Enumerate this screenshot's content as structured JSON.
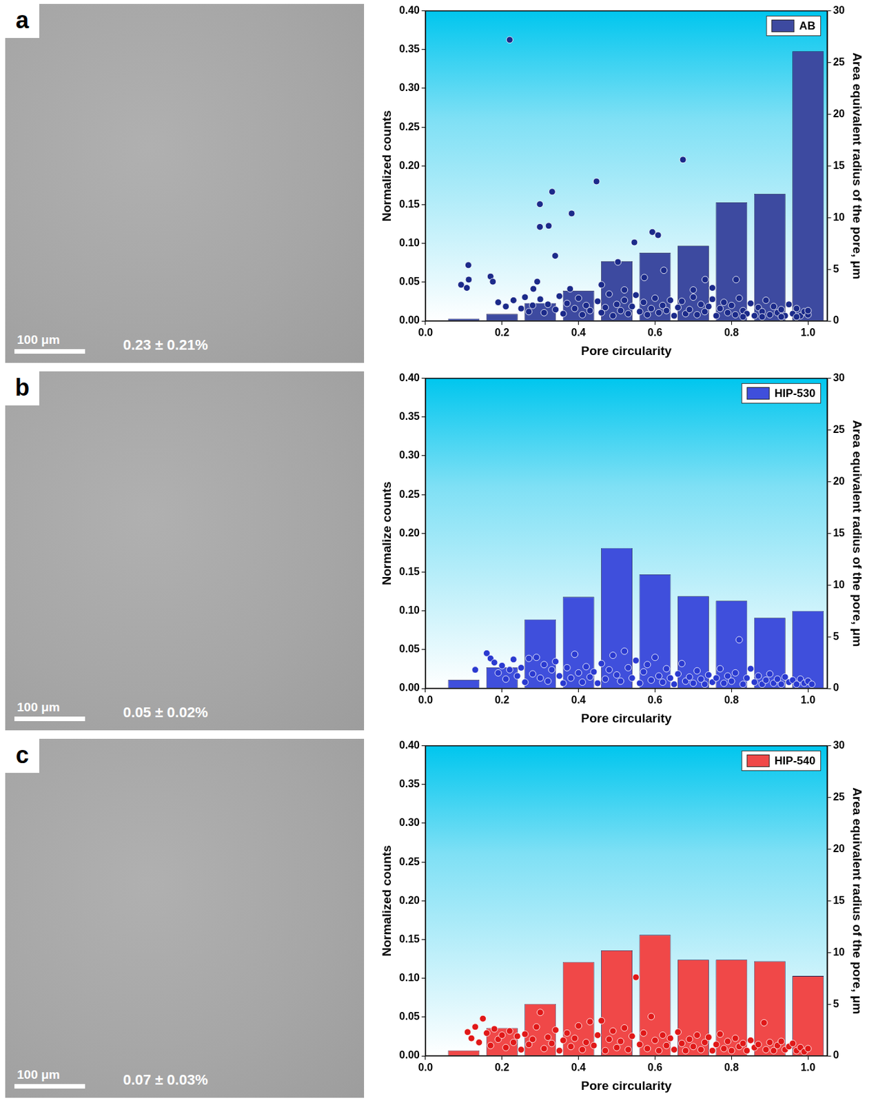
{
  "micrographs": [
    {
      "panel_letter": "a",
      "scale_bar": "100 μm",
      "porosity": "0.23 ± 0.21%"
    },
    {
      "panel_letter": "b",
      "scale_bar": "100 μm",
      "porosity": "0.05 ± 0.02%"
    },
    {
      "panel_letter": "c",
      "scale_bar": "100 μm",
      "porosity": "0.07 ± 0.03%"
    }
  ],
  "chart_data": [
    {
      "type": "bar",
      "x_label": "Pore circularity",
      "y_label": "Normalized counts",
      "y2_label": "Area equivalent radius of the pore, μm",
      "bins": [
        0.05,
        0.15,
        0.25,
        0.35,
        0.45,
        0.55,
        0.65,
        0.75,
        0.85,
        0.95,
        1.05
      ],
      "xlim": [
        0,
        1.05
      ],
      "xticks": [
        {
          "value": 0,
          "label": "0.0"
        },
        {
          "value": 0.2,
          "label": "0.2"
        },
        {
          "value": 0.4,
          "label": "0.4"
        },
        {
          "value": 0.6,
          "label": "0.6"
        },
        {
          "value": 0.8,
          "label": "0.8"
        },
        {
          "value": 1,
          "label": "1.0"
        }
      ],
      "ylim": [
        0,
        0.4
      ],
      "yticks": [
        {
          "value": 0,
          "label": "0.00"
        },
        {
          "value": 0.05,
          "label": "0.05"
        },
        {
          "value": 0.1,
          "label": "0.10"
        },
        {
          "value": 0.15,
          "label": "0.15"
        },
        {
          "value": 0.2,
          "label": "0.20"
        },
        {
          "value": 0.25,
          "label": "0.25"
        },
        {
          "value": 0.3,
          "label": "0.30"
        },
        {
          "value": 0.35,
          "label": "0.35"
        },
        {
          "value": 0.4,
          "label": "0.40"
        }
      ],
      "y2lim": [
        0,
        30
      ],
      "y2ticks": [
        0,
        5,
        10,
        15,
        20,
        25,
        30
      ],
      "grid": false,
      "legend": "upper right",
      "series": [
        {
          "name": "AB",
          "type": "bar",
          "color": "#3d4aa0",
          "values": [
            0.003,
            0.009,
            0.023,
            0.039,
            0.077,
            0.088,
            0.097,
            0.153,
            0.164,
            0.348
          ]
        },
        {
          "type": "scatter",
          "axis": "y2",
          "color": "#1b2a8a",
          "marker": "circle",
          "x": [
            0.22,
            0.673,
            0.447,
            0.331,
            0.299,
            0.382,
            0.299,
            0.322,
            0.339,
            0.546,
            0.593,
            0.608,
            0.112,
            0.113,
            0.093,
            0.108,
            0.17,
            0.176,
            0.292,
            0.282,
            0.378,
            0.503,
            0.572,
            0.623,
            0.731,
            0.812,
            0.7,
            0.75,
            0.52,
            0.46,
            0.19,
            0.21,
            0.23,
            0.25,
            0.26,
            0.27,
            0.28,
            0.3,
            0.31,
            0.32,
            0.34,
            0.35,
            0.36,
            0.37,
            0.39,
            0.4,
            0.41,
            0.42,
            0.43,
            0.45,
            0.46,
            0.47,
            0.48,
            0.49,
            0.5,
            0.51,
            0.52,
            0.53,
            0.54,
            0.55,
            0.56,
            0.57,
            0.58,
            0.59,
            0.6,
            0.61,
            0.62,
            0.63,
            0.64,
            0.65,
            0.66,
            0.67,
            0.68,
            0.69,
            0.7,
            0.71,
            0.72,
            0.73,
            0.74,
            0.75,
            0.76,
            0.77,
            0.78,
            0.79,
            0.8,
            0.81,
            0.82,
            0.83,
            0.84,
            0.85,
            0.86,
            0.87,
            0.88,
            0.89,
            0.9,
            0.91,
            0.92,
            0.93,
            0.94,
            0.95,
            0.96,
            0.97,
            0.98,
            0.99,
            1.0,
            1.0,
            0.97,
            0.93,
            0.88,
            0.83
          ],
          "values": [
            27.2,
            15.6,
            13.5,
            12.5,
            11.3,
            10.4,
            9.1,
            9.2,
            6.3,
            7.6,
            8.6,
            8.3,
            5.4,
            4.0,
            3.5,
            3.2,
            4.3,
            3.8,
            3.8,
            3.1,
            3.1,
            5.7,
            4.2,
            4.9,
            4.0,
            4.0,
            3.0,
            3.2,
            3.0,
            3.5,
            1.8,
            1.4,
            2.0,
            1.2,
            2.3,
            0.9,
            1.5,
            2.1,
            0.8,
            1.6,
            1.1,
            2.4,
            0.7,
            1.7,
            1.2,
            2.2,
            0.6,
            1.5,
            1.0,
            1.9,
            0.8,
            1.3,
            2.6,
            0.5,
            1.6,
            1.0,
            2.0,
            0.7,
            1.4,
            2.5,
            0.9,
            1.8,
            0.6,
            1.2,
            2.2,
            0.8,
            1.5,
            1.0,
            2.0,
            0.5,
            1.3,
            1.9,
            0.7,
            1.1,
            2.3,
            0.6,
            1.6,
            0.9,
            1.4,
            2.1,
            0.5,
            1.2,
            1.8,
            0.8,
            1.5,
            0.6,
            2.2,
            1.0,
            0.7,
            1.7,
            0.5,
            1.3,
            0.9,
            2.0,
            0.6,
            1.4,
            0.8,
            1.1,
            0.5,
            1.6,
            0.7,
            1.2,
            0.5,
            0.9,
            0.6,
            1.0,
            0.4,
            0.4,
            0.4,
            0.4
          ]
        }
      ]
    },
    {
      "type": "bar",
      "x_label": "Pore circularity",
      "y_label": "Normalize counts",
      "y2_label": "Area equivalent radius of the pore, μm",
      "bins": [
        0.05,
        0.15,
        0.25,
        0.35,
        0.45,
        0.55,
        0.65,
        0.75,
        0.85,
        0.95,
        1.05
      ],
      "xlim": [
        0,
        1.05
      ],
      "xticks": [
        {
          "value": 0,
          "label": "0.0"
        },
        {
          "value": 0.2,
          "label": "0.2"
        },
        {
          "value": 0.4,
          "label": "0.4"
        },
        {
          "value": 0.6,
          "label": "0.6"
        },
        {
          "value": 0.8,
          "label": "0.8"
        },
        {
          "value": 1,
          "label": "1.0"
        }
      ],
      "ylim": [
        0,
        0.4
      ],
      "yticks": [
        {
          "value": 0,
          "label": "0.00"
        },
        {
          "value": 0.05,
          "label": "0.05"
        },
        {
          "value": 0.1,
          "label": "0.10"
        },
        {
          "value": 0.15,
          "label": "0.15"
        },
        {
          "value": 0.2,
          "label": "0.20"
        },
        {
          "value": 0.25,
          "label": "0.25"
        },
        {
          "value": 0.3,
          "label": "0.30"
        },
        {
          "value": 0.35,
          "label": "0.35"
        },
        {
          "value": 0.4,
          "label": "0.40"
        }
      ],
      "y2lim": [
        0,
        30
      ],
      "y2ticks": [
        0,
        5,
        10,
        15,
        20,
        25,
        30
      ],
      "grid": false,
      "legend": "upper right",
      "series": [
        {
          "name": "HIP-530",
          "type": "bar",
          "color": "#3f4fdc",
          "values": [
            0.011,
            0.027,
            0.089,
            0.118,
            0.181,
            0.147,
            0.119,
            0.113,
            0.091,
            0.1
          ]
        },
        {
          "type": "scatter",
          "axis": "y2",
          "color": "#2a3ad0",
          "marker": "circle",
          "x": [
            0.13,
            0.16,
            0.17,
            0.18,
            0.19,
            0.2,
            0.21,
            0.22,
            0.23,
            0.24,
            0.25,
            0.26,
            0.27,
            0.28,
            0.29,
            0.3,
            0.31,
            0.32,
            0.33,
            0.34,
            0.35,
            0.36,
            0.37,
            0.38,
            0.39,
            0.4,
            0.41,
            0.42,
            0.43,
            0.44,
            0.45,
            0.46,
            0.47,
            0.48,
            0.49,
            0.5,
            0.51,
            0.52,
            0.53,
            0.54,
            0.55,
            0.56,
            0.57,
            0.58,
            0.59,
            0.6,
            0.61,
            0.62,
            0.63,
            0.64,
            0.65,
            0.66,
            0.67,
            0.68,
            0.69,
            0.7,
            0.71,
            0.72,
            0.73,
            0.74,
            0.75,
            0.76,
            0.77,
            0.78,
            0.79,
            0.8,
            0.81,
            0.82,
            0.83,
            0.84,
            0.85,
            0.86,
            0.87,
            0.88,
            0.89,
            0.9,
            0.91,
            0.92,
            0.93,
            0.94,
            0.95,
            0.96,
            0.97,
            0.98,
            0.99,
            1.0,
            1.01
          ],
          "values": [
            1.8,
            3.4,
            2.9,
            2.5,
            1.5,
            2.2,
            0.9,
            1.8,
            2.8,
            1.2,
            2.0,
            0.6,
            2.9,
            1.4,
            3.0,
            1.0,
            2.3,
            0.7,
            1.8,
            2.6,
            1.2,
            0.5,
            2.0,
            1.0,
            3.3,
            1.5,
            0.6,
            2.1,
            1.1,
            1.6,
            0.5,
            2.4,
            0.9,
            1.8,
            3.2,
            1.3,
            0.7,
            3.6,
            2.0,
            1.0,
            2.7,
            0.5,
            1.6,
            2.3,
            0.8,
            3.0,
            1.2,
            0.6,
            1.9,
            1.0,
            0.4,
            1.4,
            2.4,
            0.7,
            1.1,
            0.5,
            1.7,
            0.9,
            0.4,
            1.3,
            0.6,
            1.0,
            1.9,
            0.5,
            1.2,
            0.7,
            1.5,
            4.7,
            0.4,
            1.0,
            1.9,
            0.6,
            1.2,
            0.4,
            0.8,
            1.4,
            0.5,
            0.9,
            0.4,
            1.1,
            0.6,
            0.8,
            0.4,
            0.9,
            0.5,
            0.7,
            0.4
          ]
        }
      ]
    },
    {
      "type": "bar",
      "x_label": "Pore circularity",
      "y_label": "Normalized counts",
      "y2_label": "Area equivalent radius of the pore, μm",
      "bins": [
        0.05,
        0.15,
        0.25,
        0.35,
        0.45,
        0.55,
        0.65,
        0.75,
        0.85,
        0.95,
        1.05
      ],
      "xlim": [
        0,
        1.05
      ],
      "xticks": [
        {
          "value": 0,
          "label": "0.0"
        },
        {
          "value": 0.2,
          "label": "0.2"
        },
        {
          "value": 0.4,
          "label": "0.4"
        },
        {
          "value": 0.6,
          "label": "0.6"
        },
        {
          "value": 0.8,
          "label": "0.8"
        },
        {
          "value": 1,
          "label": "1.0"
        }
      ],
      "ylim": [
        0,
        0.4
      ],
      "yticks": [
        {
          "value": 0,
          "label": "0.00"
        },
        {
          "value": 0.05,
          "label": "0.05"
        },
        {
          "value": 0.1,
          "label": "0.10"
        },
        {
          "value": 0.15,
          "label": "0.15"
        },
        {
          "value": 0.2,
          "label": "0.20"
        },
        {
          "value": 0.25,
          "label": "0.25"
        },
        {
          "value": 0.3,
          "label": "0.30"
        },
        {
          "value": 0.35,
          "label": "0.35"
        },
        {
          "value": 0.4,
          "label": "0.40"
        }
      ],
      "y2lim": [
        0,
        30
      ],
      "y2ticks": [
        0,
        5,
        10,
        15,
        20,
        25,
        30
      ],
      "grid": false,
      "legend": "upper right",
      "series": [
        {
          "name": "HIP-540",
          "type": "bar",
          "color": "#f04848",
          "values": [
            0.007,
            0.036,
            0.067,
            0.121,
            0.136,
            0.156,
            0.124,
            0.124,
            0.122,
            0.103
          ]
        },
        {
          "type": "scatter",
          "axis": "y2",
          "color": "#e01818",
          "marker": "circle",
          "x": [
            0.11,
            0.12,
            0.13,
            0.14,
            0.15,
            0.16,
            0.17,
            0.18,
            0.19,
            0.2,
            0.21,
            0.22,
            0.23,
            0.24,
            0.25,
            0.26,
            0.27,
            0.28,
            0.29,
            0.3,
            0.31,
            0.32,
            0.33,
            0.34,
            0.35,
            0.36,
            0.37,
            0.38,
            0.39,
            0.4,
            0.41,
            0.42,
            0.43,
            0.44,
            0.45,
            0.46,
            0.47,
            0.48,
            0.49,
            0.5,
            0.51,
            0.52,
            0.53,
            0.54,
            0.55,
            0.56,
            0.57,
            0.58,
            0.59,
            0.6,
            0.61,
            0.62,
            0.63,
            0.64,
            0.65,
            0.66,
            0.67,
            0.68,
            0.69,
            0.7,
            0.71,
            0.72,
            0.73,
            0.74,
            0.75,
            0.76,
            0.77,
            0.78,
            0.79,
            0.8,
            0.81,
            0.82,
            0.83,
            0.84,
            0.85,
            0.86,
            0.87,
            0.885,
            0.89,
            0.9,
            0.91,
            0.92,
            0.93,
            0.94,
            0.95,
            0.96,
            0.97,
            0.98,
            0.99,
            1.0
          ],
          "values": [
            2.3,
            1.7,
            2.8,
            1.3,
            3.6,
            2.2,
            1.0,
            2.6,
            1.6,
            2.0,
            0.8,
            2.4,
            1.3,
            1.9,
            0.6,
            2.1,
            1.1,
            1.6,
            2.8,
            4.2,
            0.7,
            1.8,
            1.2,
            2.5,
            0.5,
            1.5,
            2.2,
            0.9,
            1.7,
            2.9,
            0.6,
            1.3,
            3.3,
            1.0,
            2.0,
            3.4,
            0.5,
            1.6,
            2.4,
            0.8,
            1.4,
            2.7,
            0.6,
            1.9,
            7.6,
            1.1,
            2.2,
            0.7,
            3.8,
            1.5,
            0.5,
            2.0,
            1.0,
            1.7,
            0.6,
            2.3,
            1.2,
            0.5,
            1.6,
            0.9,
            2.0,
            0.6,
            1.3,
            1.8,
            0.5,
            1.1,
            2.1,
            0.7,
            1.4,
            0.5,
            1.7,
            0.9,
            1.2,
            0.5,
            1.5,
            0.8,
            1.1,
            3.2,
            0.6,
            1.3,
            0.5,
            1.0,
            1.4,
            0.6,
            0.9,
            1.2,
            0.5,
            0.8,
            0.4,
            0.7
          ]
        }
      ]
    }
  ]
}
